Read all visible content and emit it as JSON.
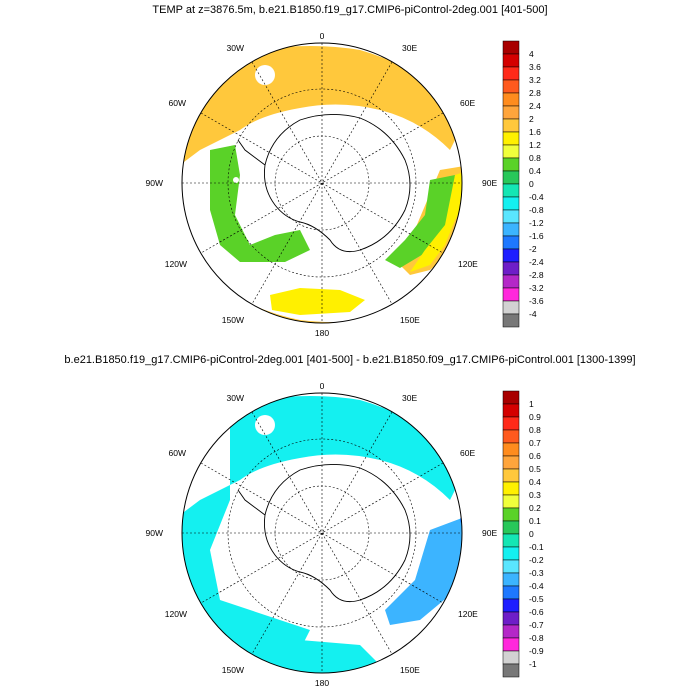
{
  "panels": [
    {
      "title": "TEMP at z=3876.5m, b.e21.B1850.f19_g17.CMIP6-piControl-2deg.001 [401-500]",
      "lon_labels": [
        "0",
        "30E",
        "60E",
        "90E",
        "120E",
        "150E",
        "180",
        "150W",
        "120W",
        "90W",
        "60W",
        "30W"
      ],
      "colorbar": {
        "labels": [
          "4",
          "3.6",
          "3.2",
          "2.8",
          "2.4",
          "2",
          "1.6",
          "1.2",
          "0.8",
          "0.4",
          "0",
          "-0.4",
          "-0.8",
          "-1.2",
          "-1.6",
          "-2",
          "-2.4",
          "-2.8",
          "-3.2",
          "-3.6",
          "-4"
        ],
        "colors": [
          "#a80000",
          "#d40000",
          "#ff2a1a",
          "#ff5a1e",
          "#ff8c1e",
          "#ffa53c",
          "#ffc83c",
          "#fff000",
          "#f0ff3c",
          "#5ad228",
          "#28c85a",
          "#14e6b4",
          "#14f0f0",
          "#5ae6ff",
          "#3cb4ff",
          "#1e78ff",
          "#1e1eff",
          "#6e1ec8",
          "#b428c8",
          "#ff28dc",
          "#d2d2d2",
          "#787878"
        ]
      }
    },
    {
      "title": "b.e21.B1850.f19_g17.CMIP6-piControl-2deg.001 [401-500] - b.e21.B1850.f09_g17.CMIP6-piControl.001 [1300-1399]",
      "lon_labels": [
        "0",
        "30E",
        "60E",
        "90E",
        "120E",
        "150E",
        "180",
        "150W",
        "120W",
        "90W",
        "60W",
        "30W"
      ],
      "colorbar": {
        "labels": [
          "1",
          "0.9",
          "0.8",
          "0.7",
          "0.6",
          "0.5",
          "0.4",
          "0.3",
          "0.2",
          "0.1",
          "0",
          "-0.1",
          "-0.2",
          "-0.3",
          "-0.4",
          "-0.5",
          "-0.6",
          "-0.7",
          "-0.8",
          "-0.9",
          "-1"
        ],
        "colors": [
          "#a80000",
          "#d40000",
          "#ff2a1a",
          "#ff5a1e",
          "#ff8c1e",
          "#ffa53c",
          "#ffc83c",
          "#fff000",
          "#f0ff3c",
          "#5ad228",
          "#28c85a",
          "#14e6b4",
          "#14f0f0",
          "#5ae6ff",
          "#3cb4ff",
          "#1e78ff",
          "#1e1eff",
          "#6e1ec8",
          "#b428c8",
          "#ff28dc",
          "#d2d2d2",
          "#787878"
        ]
      }
    }
  ]
}
